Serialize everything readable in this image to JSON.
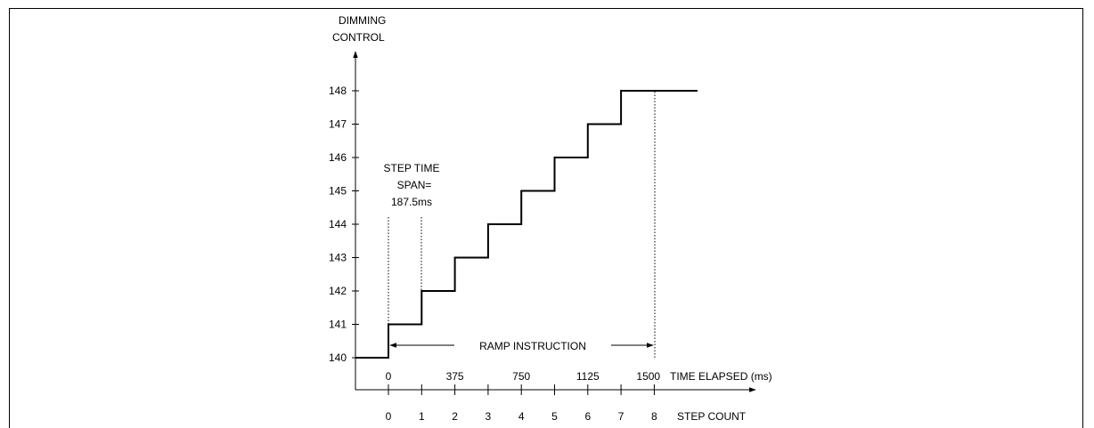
{
  "chart_data": {
    "type": "line",
    "title": "",
    "ylabel_lines": [
      "DIMMING",
      "CONTROL"
    ],
    "y_ticks": [
      140,
      141,
      142,
      143,
      144,
      145,
      146,
      147,
      148
    ],
    "ylim": [
      140,
      148
    ],
    "time_axis": {
      "label": "TIME ELAPSED (ms)",
      "ticks": [
        0,
        375,
        750,
        1125,
        1500
      ]
    },
    "step_axis": {
      "label": "STEP COUNT",
      "ticks": [
        0,
        1,
        2,
        3,
        4,
        5,
        6,
        7,
        8
      ]
    },
    "series": [
      {
        "x_step": [
          -1,
          0,
          1,
          2,
          3,
          4,
          5,
          6,
          7,
          9.3
        ],
        "y": [
          140,
          141,
          142,
          143,
          144,
          145,
          146,
          147,
          148,
          148
        ]
      }
    ],
    "annotations": {
      "step_time_lines": [
        "STEP TIME",
        "SPAN=",
        "187.5ms"
      ],
      "ramp_instruction": "RAMP INSTRUCTION"
    },
    "grid": false
  }
}
